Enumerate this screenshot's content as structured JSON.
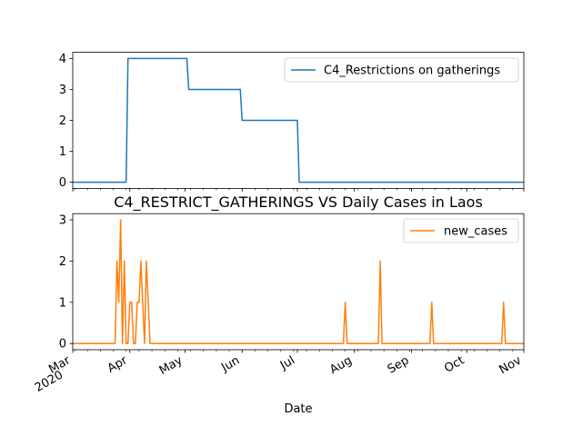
{
  "chart_data": [
    {
      "type": "line",
      "title": "",
      "xlabel": "",
      "ylabel": "",
      "ylim": [
        -0.2,
        4.2
      ],
      "yticks": [
        0,
        1,
        2,
        3,
        4
      ],
      "x_range": [
        "2020-03-01",
        "2020-11-01"
      ],
      "legend": "top-right",
      "series": [
        {
          "name": "C4_Restrictions on gatherings",
          "color": "#1f77b4",
          "points": [
            [
              "2020-03-01",
              0
            ],
            [
              "2020-03-30",
              0
            ],
            [
              "2020-03-31",
              4
            ],
            [
              "2020-05-02",
              4
            ],
            [
              "2020-05-03",
              3
            ],
            [
              "2020-05-31",
              3
            ],
            [
              "2020-06-01",
              2
            ],
            [
              "2020-07-01",
              2
            ],
            [
              "2020-07-02",
              0
            ],
            [
              "2020-11-01",
              0
            ]
          ]
        }
      ]
    },
    {
      "type": "line",
      "title": "C4_RESTRICT_GATHERINGS VS Daily Cases in Laos",
      "xlabel": "Date",
      "ylabel": "",
      "ylim": [
        -0.15,
        3.15
      ],
      "yticks": [
        0,
        1,
        2,
        3
      ],
      "x_range": [
        "2020-03-01",
        "2020-11-01"
      ],
      "legend": "top-right",
      "xtick_labels": [
        {
          "date": "2020-03-01",
          "label": "Mar",
          "sub": "2020"
        },
        {
          "date": "2020-04-01",
          "label": "Apr"
        },
        {
          "date": "2020-05-01",
          "label": "May"
        },
        {
          "date": "2020-06-01",
          "label": "Jun"
        },
        {
          "date": "2020-07-01",
          "label": "Jul"
        },
        {
          "date": "2020-08-01",
          "label": "Aug"
        },
        {
          "date": "2020-09-01",
          "label": "Sep"
        },
        {
          "date": "2020-10-01",
          "label": "Oct"
        },
        {
          "date": "2020-11-01",
          "label": "Nov"
        }
      ],
      "series": [
        {
          "name": "new_cases",
          "color": "#ff7f0e",
          "points": [
            [
              "2020-03-01",
              0
            ],
            [
              "2020-03-24",
              0
            ],
            [
              "2020-03-25",
              2
            ],
            [
              "2020-03-26",
              1
            ],
            [
              "2020-03-27",
              3
            ],
            [
              "2020-03-28",
              0
            ],
            [
              "2020-03-29",
              2
            ],
            [
              "2020-03-30",
              0
            ],
            [
              "2020-03-31",
              0
            ],
            [
              "2020-04-01",
              1
            ],
            [
              "2020-04-02",
              1
            ],
            [
              "2020-04-03",
              0
            ],
            [
              "2020-04-04",
              0
            ],
            [
              "2020-04-05",
              1
            ],
            [
              "2020-04-06",
              1
            ],
            [
              "2020-04-07",
              2
            ],
            [
              "2020-04-08",
              1
            ],
            [
              "2020-04-09",
              0
            ],
            [
              "2020-04-10",
              2
            ],
            [
              "2020-04-11",
              1
            ],
            [
              "2020-04-12",
              0
            ],
            [
              "2020-07-26",
              0
            ],
            [
              "2020-07-27",
              1
            ],
            [
              "2020-07-28",
              0
            ],
            [
              "2020-08-14",
              0
            ],
            [
              "2020-08-15",
              2
            ],
            [
              "2020-08-16",
              0
            ],
            [
              "2020-09-11",
              0
            ],
            [
              "2020-09-12",
              1
            ],
            [
              "2020-09-13",
              0
            ],
            [
              "2020-10-20",
              0
            ],
            [
              "2020-10-21",
              1
            ],
            [
              "2020-10-22",
              0
            ],
            [
              "2020-11-01",
              0
            ]
          ]
        }
      ]
    }
  ]
}
